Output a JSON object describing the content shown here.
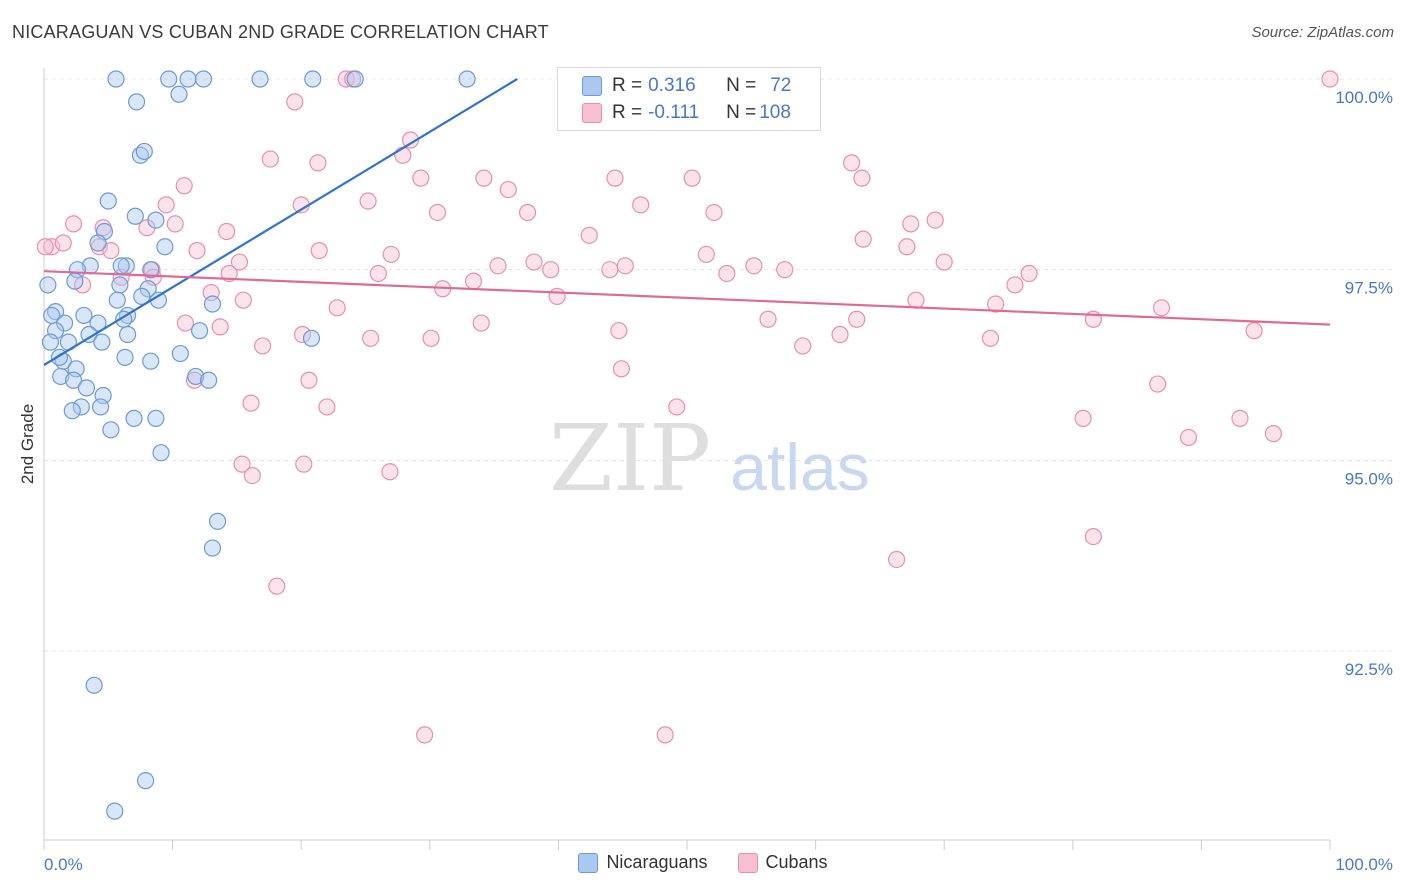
{
  "title": "NICARAGUAN VS CUBAN 2ND GRADE CORRELATION CHART",
  "source": "Source: ZipAtlas.com",
  "watermark": {
    "zip": "ZIP",
    "atlas": "atlas"
  },
  "legend": {
    "rows": [
      {
        "r_label": "R = ",
        "r_value": "0.316",
        "n_label": "N = ",
        "n_value": "72"
      },
      {
        "r_label": "R = ",
        "r_value": "-0.111",
        "n_label": "N = ",
        "n_value": "108"
      }
    ]
  },
  "bottom_legend": [
    "Nicaraguans",
    "Cubans"
  ],
  "colors": {
    "blue_fill": "#aac8f0",
    "blue_stroke": "#6a9bd8",
    "blue_line": "#2f74d0",
    "pink_fill": "#f6bfd2",
    "pink_stroke": "#e88fb0",
    "pink_line": "#e06a94"
  },
  "chart_data": {
    "type": "scatter",
    "title": "NICARAGUAN VS CUBAN 2ND GRADE CORRELATION CHART",
    "xlabel": "",
    "ylabel": "2nd Grade",
    "xlim": [
      0,
      100
    ],
    "ylim": [
      90.2,
      100.2
    ],
    "x_tick_labels": [
      "0.0%",
      "100.0%"
    ],
    "y_ticks": [
      92.5,
      95.0,
      97.5,
      100.0
    ],
    "y_tick_labels": [
      "92.5%",
      "95.0%",
      "97.5%",
      "100.0%"
    ],
    "series": [
      {
        "name": "Nicaraguans",
        "trend": {
          "x0": 0,
          "y0": 96.25,
          "x1": 36.8,
          "y1": 100.0
        },
        "points": [
          [
            5.6,
            100
          ],
          [
            9.7,
            100
          ],
          [
            11.2,
            100
          ],
          [
            12.4,
            100
          ],
          [
            16.8,
            100
          ],
          [
            20.9,
            100
          ],
          [
            24.2,
            100
          ],
          [
            32.9,
            100
          ],
          [
            7.2,
            99.7
          ],
          [
            10.5,
            99.8
          ],
          [
            7.5,
            99.0
          ],
          [
            7.8,
            99.05
          ],
          [
            5.0,
            98.4
          ],
          [
            7.1,
            98.2
          ],
          [
            8.7,
            98.15
          ],
          [
            4.7,
            98.0
          ],
          [
            4.2,
            97.85
          ],
          [
            9.4,
            97.8
          ],
          [
            3.6,
            97.55
          ],
          [
            2.6,
            97.5
          ],
          [
            6.4,
            97.55
          ],
          [
            6.0,
            97.55
          ],
          [
            8.3,
            97.5
          ],
          [
            0.3,
            97.3
          ],
          [
            2.4,
            97.35
          ],
          [
            5.9,
            97.3
          ],
          [
            8.1,
            97.25
          ],
          [
            7.6,
            97.15
          ],
          [
            5.7,
            97.1
          ],
          [
            8.9,
            97.1
          ],
          [
            13.1,
            97.05
          ],
          [
            0.9,
            96.95
          ],
          [
            0.6,
            96.9
          ],
          [
            3.1,
            96.9
          ],
          [
            6.5,
            96.9
          ],
          [
            1.6,
            96.8
          ],
          [
            4.2,
            96.8
          ],
          [
            6.2,
            96.85
          ],
          [
            0.9,
            96.7
          ],
          [
            3.5,
            96.65
          ],
          [
            6.5,
            96.65
          ],
          [
            12.1,
            96.7
          ],
          [
            20.8,
            96.6
          ],
          [
            0.5,
            96.55
          ],
          [
            1.9,
            96.55
          ],
          [
            4.5,
            96.55
          ],
          [
            1.5,
            96.3
          ],
          [
            6.3,
            96.35
          ],
          [
            8.3,
            96.3
          ],
          [
            10.6,
            96.4
          ],
          [
            1.2,
            96.35
          ],
          [
            2.5,
            96.2
          ],
          [
            1.3,
            96.1
          ],
          [
            2.3,
            96.05
          ],
          [
            11.8,
            96.1
          ],
          [
            12.8,
            96.05
          ],
          [
            3.3,
            95.95
          ],
          [
            4.6,
            95.85
          ],
          [
            2.9,
            95.7
          ],
          [
            4.4,
            95.7
          ],
          [
            2.2,
            95.65
          ],
          [
            7.0,
            95.55
          ],
          [
            8.7,
            95.55
          ],
          [
            5.2,
            95.4
          ],
          [
            9.1,
            95.1
          ],
          [
            13.5,
            94.2
          ],
          [
            13.1,
            93.85
          ],
          [
            3.9,
            92.05
          ],
          [
            7.9,
            90.8
          ],
          [
            5.5,
            90.4
          ]
        ]
      },
      {
        "name": "Cubans",
        "trend": {
          "x0": 0,
          "y0": 97.48,
          "x1": 100,
          "y1": 96.78
        },
        "points": [
          [
            23.5,
            100
          ],
          [
            24.0,
            100
          ],
          [
            100,
            100
          ],
          [
            19.5,
            99.7
          ],
          [
            28.5,
            99.2
          ],
          [
            27.9,
            99.0
          ],
          [
            17.6,
            98.95
          ],
          [
            21.3,
            98.9
          ],
          [
            62.8,
            98.9
          ],
          [
            29.3,
            98.7
          ],
          [
            34.2,
            98.7
          ],
          [
            44.4,
            98.7
          ],
          [
            50.4,
            98.7
          ],
          [
            63.6,
            98.7
          ],
          [
            10.9,
            98.6
          ],
          [
            36.1,
            98.55
          ],
          [
            20.0,
            98.35
          ],
          [
            25.2,
            98.4
          ],
          [
            46.4,
            98.35
          ],
          [
            9.5,
            98.35
          ],
          [
            30.6,
            98.25
          ],
          [
            37.6,
            98.25
          ],
          [
            52.1,
            98.25
          ],
          [
            2.3,
            98.1
          ],
          [
            4.6,
            98.05
          ],
          [
            8.0,
            98.05
          ],
          [
            10.2,
            98.1
          ],
          [
            67.4,
            98.1
          ],
          [
            69.3,
            98.15
          ],
          [
            14.2,
            98.0
          ],
          [
            42.4,
            97.95
          ],
          [
            63.7,
            97.9
          ],
          [
            0.6,
            97.8
          ],
          [
            1.5,
            97.85
          ],
          [
            4.3,
            97.8
          ],
          [
            5.2,
            97.75
          ],
          [
            11.9,
            97.75
          ],
          [
            21.4,
            97.75
          ],
          [
            27.0,
            97.7
          ],
          [
            51.5,
            97.7
          ],
          [
            67.1,
            97.8
          ],
          [
            0.1,
            97.8
          ],
          [
            8.4,
            97.5
          ],
          [
            15.2,
            97.6
          ],
          [
            35.3,
            97.55
          ],
          [
            38.1,
            97.6
          ],
          [
            39.4,
            97.5
          ],
          [
            44.0,
            97.5
          ],
          [
            45.2,
            97.55
          ],
          [
            55.2,
            97.55
          ],
          [
            57.6,
            97.5
          ],
          [
            70.0,
            97.6
          ],
          [
            3.0,
            97.3
          ],
          [
            6.0,
            97.4
          ],
          [
            8.5,
            97.4
          ],
          [
            14.4,
            97.45
          ],
          [
            26.0,
            97.45
          ],
          [
            31.0,
            97.25
          ],
          [
            33.4,
            97.35
          ],
          [
            53.1,
            97.45
          ],
          [
            75.5,
            97.3
          ],
          [
            76.6,
            97.45
          ],
          [
            13.0,
            97.2
          ],
          [
            15.5,
            97.1
          ],
          [
            22.8,
            97.0
          ],
          [
            39.9,
            97.15
          ],
          [
            67.8,
            97.1
          ],
          [
            74.0,
            97.05
          ],
          [
            86.9,
            97.0
          ],
          [
            11.0,
            96.8
          ],
          [
            13.7,
            96.75
          ],
          [
            20.1,
            96.65
          ],
          [
            25.4,
            96.6
          ],
          [
            30.1,
            96.6
          ],
          [
            34.0,
            96.8
          ],
          [
            44.7,
            96.7
          ],
          [
            56.3,
            96.85
          ],
          [
            61.9,
            96.65
          ],
          [
            63.2,
            96.85
          ],
          [
            73.6,
            96.6
          ],
          [
            81.6,
            96.85
          ],
          [
            94.1,
            96.7
          ],
          [
            17.0,
            96.5
          ],
          [
            59.0,
            96.5
          ],
          [
            11.7,
            96.05
          ],
          [
            20.6,
            96.05
          ],
          [
            44.9,
            96.2
          ],
          [
            86.6,
            96.0
          ],
          [
            16.1,
            95.75
          ],
          [
            22.0,
            95.7
          ],
          [
            49.2,
            95.7
          ],
          [
            80.8,
            95.55
          ],
          [
            89.0,
            95.3
          ],
          [
            93.0,
            95.55
          ],
          [
            95.6,
            95.35
          ],
          [
            20.2,
            94.95
          ],
          [
            26.9,
            94.85
          ],
          [
            15.4,
            94.95
          ],
          [
            16.2,
            94.8
          ],
          [
            81.6,
            94.0
          ],
          [
            66.3,
            93.7
          ],
          [
            18.1,
            93.35
          ],
          [
            29.6,
            91.4
          ],
          [
            48.3,
            91.4
          ]
        ]
      }
    ]
  }
}
